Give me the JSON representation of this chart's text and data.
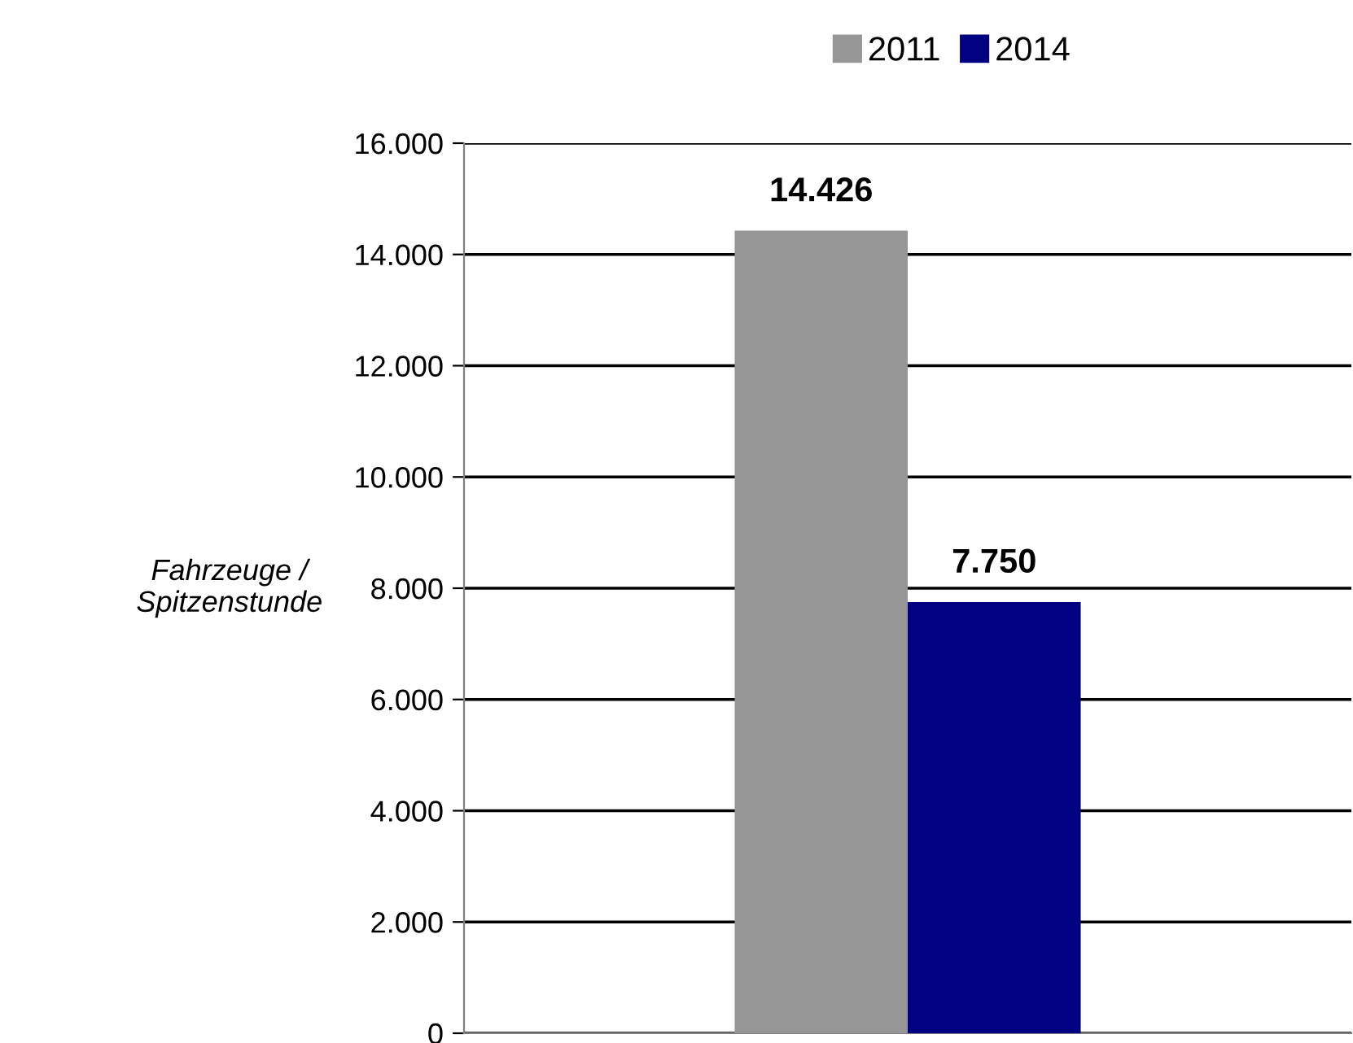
{
  "chart_data": {
    "type": "bar",
    "ylabel": "Fahrzeuge /\nSpitzenstunde",
    "categories": [
      null
    ],
    "series": [
      {
        "name": "2011",
        "color": "#969696",
        "values": [
          14426
        ],
        "value_labels": [
          "14.426"
        ]
      },
      {
        "name": "2014",
        "color": "#000080",
        "values": [
          7750
        ],
        "value_labels": [
          "7.750"
        ]
      }
    ],
    "ylim": [
      0,
      16000
    ],
    "yticks": [
      {
        "value": 0,
        "label": "0"
      },
      {
        "value": 2000,
        "label": "2.000"
      },
      {
        "value": 4000,
        "label": "4.000"
      },
      {
        "value": 6000,
        "label": "6.000"
      },
      {
        "value": 8000,
        "label": "8.000"
      },
      {
        "value": 10000,
        "label": "10.000"
      },
      {
        "value": 12000,
        "label": "12.000"
      },
      {
        "value": 14000,
        "label": "14.000"
      },
      {
        "value": 16000,
        "label": "16.000"
      }
    ],
    "grid": "y",
    "legend": "top"
  }
}
